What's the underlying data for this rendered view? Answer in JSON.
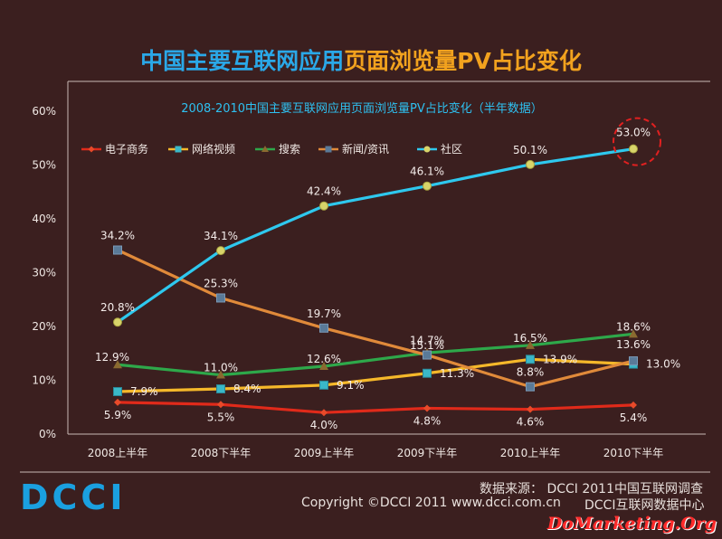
{
  "header": {
    "title_part1": "中国主要互联网应用",
    "title_part2": "页面浏览量PV占比变化"
  },
  "footer": {
    "source": "数据来源： DCCI 2011中国互联网调查",
    "copyright": "Copyright ©DCCI 2011 www.dcci.com.cn",
    "center": "DCCI互联网数据中心",
    "logo": "DCCI",
    "watermark": "DoMarketing.Org"
  },
  "colors": {
    "background": "#3b1f1f",
    "title_blue": "#2aa8e8",
    "title_orange": "#f2a21e",
    "highlight_circle": "#e02020"
  },
  "chart_data": {
    "type": "line",
    "title": "2008-2010中国主要互联网应用页面浏览量PV占比变化（半年数据）",
    "categories": [
      "2008上半年",
      "2008下半年",
      "2009上半年",
      "2009下半年",
      "2010上半年",
      "2010下半年"
    ],
    "ylim": [
      0,
      60
    ],
    "yticks": [
      0,
      10,
      20,
      30,
      40,
      50,
      60
    ],
    "ytick_labels": [
      "0%",
      "10%",
      "20%",
      "30%",
      "40%",
      "50%",
      "60%"
    ],
    "grid": false,
    "legend_position": "top-left",
    "series": [
      {
        "name": "电子商务",
        "color": "#e02a1a",
        "marker": "diamond",
        "values": [
          5.9,
          5.5,
          4.0,
          4.8,
          4.6,
          5.4
        ],
        "labels": [
          "5.9%",
          "5.5%",
          "4.0%",
          "4.8%",
          "4.6%",
          "5.4%"
        ]
      },
      {
        "name": "网络视频",
        "color": "#f5b82a",
        "marker": "square",
        "values": [
          7.9,
          8.4,
          9.1,
          11.3,
          13.9,
          13.0
        ],
        "labels": [
          "7.9%",
          "8.4%",
          "9.1%",
          "11.3%",
          "13.9%",
          "13.0%"
        ]
      },
      {
        "name": "搜索",
        "color": "#2ea84a",
        "marker": "triangle",
        "values": [
          12.9,
          11.0,
          12.6,
          15.1,
          16.5,
          18.6
        ],
        "labels": [
          "12.9%",
          "11.0%",
          "12.6%",
          "15.1%",
          "16.5%",
          "18.6%"
        ]
      },
      {
        "name": "新闻/资讯",
        "color": "#e08a3a",
        "marker": "x",
        "values": [
          34.2,
          25.3,
          19.7,
          14.7,
          8.8,
          13.6
        ],
        "labels": [
          "34.2%",
          "25.3%",
          "19.7%",
          "14.7%",
          "8.8%",
          "13.6%"
        ]
      },
      {
        "name": "社区",
        "color": "#2ec8ee",
        "marker": "circle",
        "values": [
          20.8,
          34.1,
          42.4,
          46.1,
          50.1,
          53.0
        ],
        "labels": [
          "20.8%",
          "34.1%",
          "42.4%",
          "46.1%",
          "50.1%",
          "53.0%"
        ]
      }
    ],
    "highlight": {
      "series": "社区",
      "index": 5
    }
  }
}
